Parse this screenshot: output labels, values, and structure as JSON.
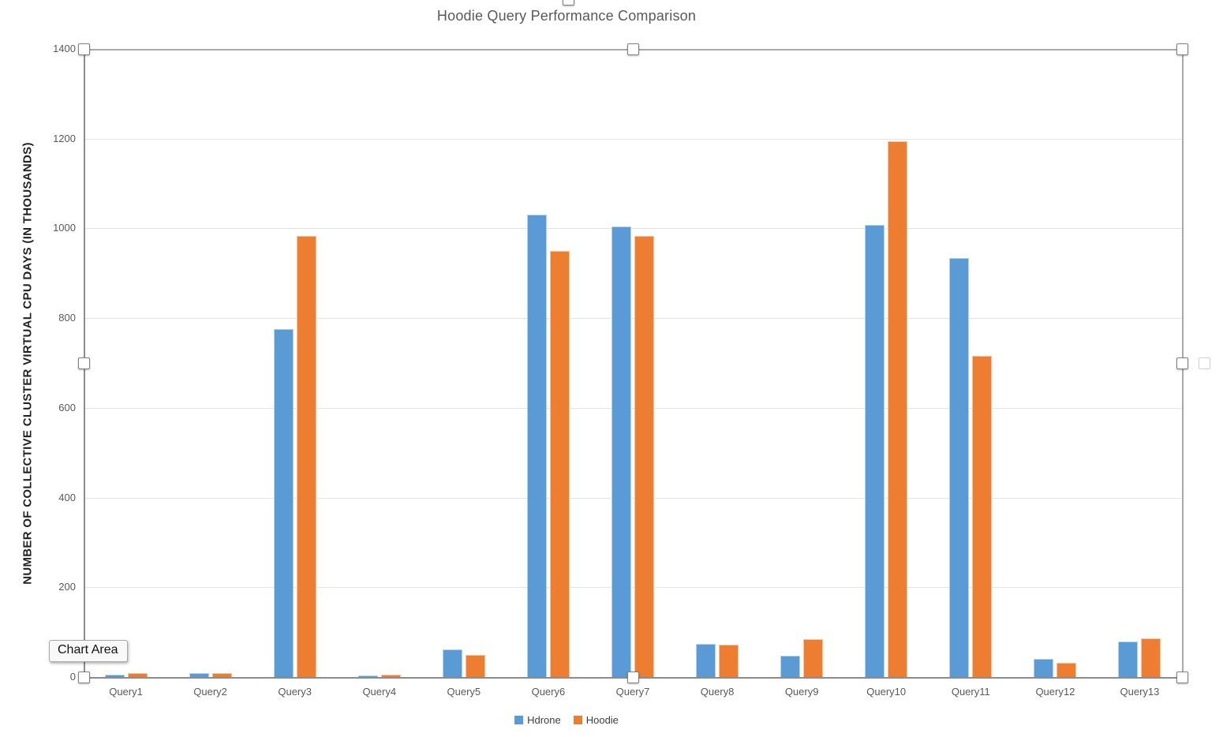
{
  "chart_data": {
    "type": "bar",
    "title": "Hoodie Query Performance Comparison",
    "xlabel": "",
    "ylabel": "NUMBER OF COLLECTIVE CLUSTER VIRTUAL CPU DAYS (IN THOUSANDS)",
    "categories": [
      "Query1",
      "Query2",
      "Query3",
      "Query4",
      "Query5",
      "Query6",
      "Query7",
      "Query8",
      "Query9",
      "Query10",
      "Query11",
      "Query12",
      "Query13"
    ],
    "series": [
      {
        "name": "Hdrone",
        "color": "#5B9BD5",
        "values": [
          5,
          9,
          776,
          3,
          62,
          1030,
          1004,
          73,
          48,
          1008,
          934,
          40,
          80
        ]
      },
      {
        "name": "Hoodie",
        "color": "#ED7D31",
        "values": [
          9,
          9,
          984,
          5,
          49,
          949,
          984,
          72,
          84,
          1194,
          715,
          32,
          87
        ]
      }
    ],
    "ylim": [
      0,
      1400
    ],
    "ytick_step": 200,
    "yticks": [
      0,
      200,
      400,
      600,
      800,
      1000,
      1200,
      1400
    ],
    "grid": true,
    "legend_position": "bottom"
  },
  "overlay": {
    "tooltip_label": "Chart Area"
  },
  "colors": {
    "series_blue": "#5B9BD5",
    "series_orange": "#ED7D31",
    "gridline": "#e4e4e4",
    "axis": "#8c8c8c",
    "title_text": "#595959"
  }
}
